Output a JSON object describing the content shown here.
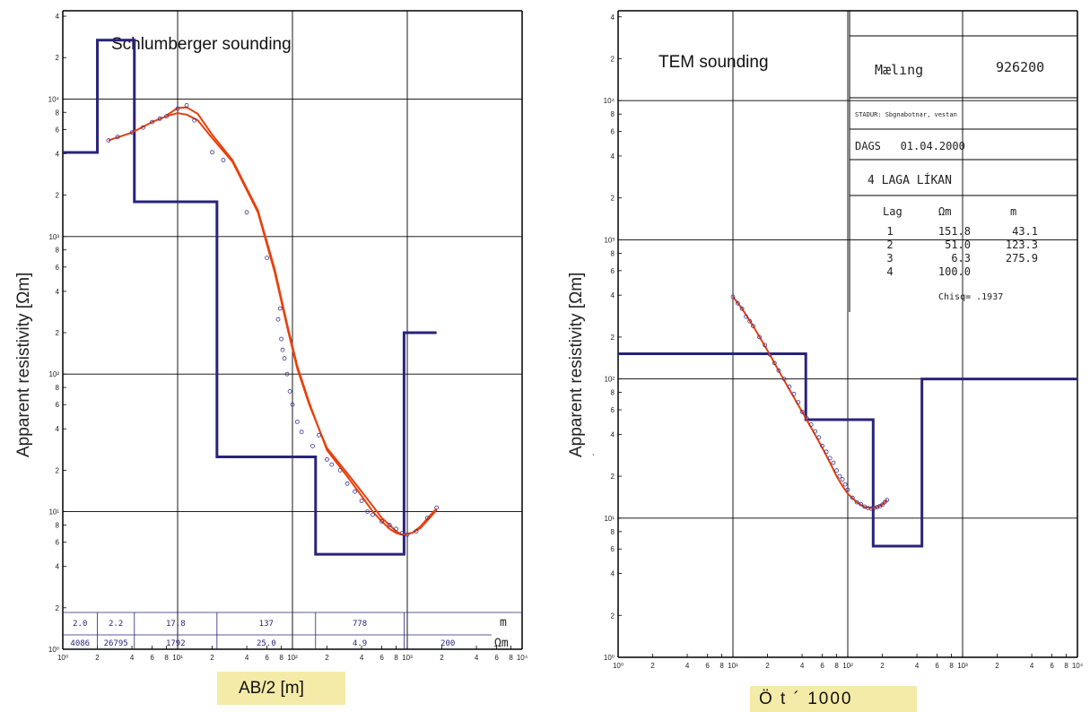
{
  "chart_data": [
    {
      "type": "line",
      "title": "Schlumberger sounding",
      "xlabel": "AB/2 [m]",
      "ylabel": "Apparent resistivity [Ωm]",
      "xscale": "log",
      "yscale": "log",
      "xlim": [
        1,
        10000
      ],
      "ylim": [
        1,
        100000
      ],
      "grid": true,
      "x_ticks": [
        {
          "v": 1,
          "t": "10⁰"
        },
        {
          "v": 2,
          "t": "2"
        },
        {
          "v": 4,
          "t": "4"
        },
        {
          "v": 6,
          "t": "6"
        },
        {
          "v": 8,
          "t": "8"
        },
        {
          "v": 10,
          "t": "10¹"
        },
        {
          "v": 20,
          "t": "2"
        },
        {
          "v": 40,
          "t": "4"
        },
        {
          "v": 60,
          "t": "6"
        },
        {
          "v": 80,
          "t": "8"
        },
        {
          "v": 100,
          "t": "10²"
        },
        {
          "v": 200,
          "t": "2"
        },
        {
          "v": 400,
          "t": "4"
        },
        {
          "v": 600,
          "t": "6"
        },
        {
          "v": 800,
          "t": "8"
        },
        {
          "v": 1000,
          "t": "10³"
        },
        {
          "v": 2000,
          "t": "2"
        },
        {
          "v": 4000,
          "t": "4"
        },
        {
          "v": 6000,
          "t": "6"
        },
        {
          "v": 8000,
          "t": "8"
        },
        {
          "v": 10000,
          "t": "10⁴"
        }
      ],
      "y_ticks": [
        {
          "v": 1,
          "t": "10⁰"
        },
        {
          "v": 2,
          "t": "2"
        },
        {
          "v": 4,
          "t": "4"
        },
        {
          "v": 6,
          "t": "6"
        },
        {
          "v": 8,
          "t": "8"
        },
        {
          "v": 10,
          "t": "10¹"
        },
        {
          "v": 20,
          "t": "2"
        },
        {
          "v": 40,
          "t": "4"
        },
        {
          "v": 60,
          "t": "6"
        },
        {
          "v": 80,
          "t": "8"
        },
        {
          "v": 100,
          "t": "10²"
        },
        {
          "v": 200,
          "t": "2"
        },
        {
          "v": 400,
          "t": "4"
        },
        {
          "v": 600,
          "t": "6"
        },
        {
          "v": 800,
          "t": "8"
        },
        {
          "v": 1000,
          "t": "10³"
        },
        {
          "v": 2000,
          "t": "2"
        },
        {
          "v": 4000,
          "t": "4"
        },
        {
          "v": 6000,
          "t": "6"
        },
        {
          "v": 8000,
          "t": "8"
        },
        {
          "v": 10000,
          "t": "10⁴"
        },
        {
          "v": 20000,
          "t": "2"
        },
        {
          "v": 40000,
          "t": "4"
        },
        {
          "v": 60000,
          "t": "6"
        },
        {
          "v": 80000,
          "t": "8"
        },
        {
          "v": 100000,
          "t": "10⁵"
        }
      ],
      "model": {
        "boundaries": [
          2.0,
          4.2,
          22.0,
          159.0,
          937.0
        ],
        "resistivities": [
          4086,
          26795,
          1792,
          25.0,
          4.9,
          200
        ],
        "thickness_labels": [
          "2.0",
          "2.2",
          "17.8",
          "137",
          "778"
        ],
        "resistivity_labels": [
          "4086",
          "26795",
          "1792",
          "25.0",
          "4.9",
          "200"
        ],
        "unit_thickness": "m",
        "unit_resistivity": "Ωm"
      },
      "series": [
        {
          "role": "fit",
          "x": [
            2.5,
            4,
            6,
            8,
            10,
            12,
            15,
            20,
            30,
            50,
            70,
            90,
            110,
            140,
            170,
            200,
            250,
            300,
            400,
            500,
            600,
            700,
            800,
            900,
            1100,
            1300,
            1600,
            1800
          ],
          "y": [
            5000,
            5700,
            6800,
            7500,
            7900,
            7700,
            7000,
            5200,
            3500,
            1500,
            550,
            220,
            110,
            60,
            40,
            28,
            22,
            18,
            13,
            10,
            8.5,
            7.5,
            7,
            6.8,
            7,
            7.8,
            9.5,
            10.5
          ]
        },
        {
          "role": "fit",
          "x": [
            8,
            10,
            12,
            15,
            20,
            30,
            50,
            70,
            90,
            110,
            140,
            170,
            200,
            250,
            300,
            400,
            500,
            600,
            700,
            800,
            900,
            1100,
            1300,
            1600,
            1800
          ],
          "y": [
            7600,
            8600,
            8700,
            7800,
            5500,
            3600,
            1550,
            580,
            230,
            115,
            62,
            40,
            29,
            23,
            19,
            14,
            11,
            9,
            8,
            7.2,
            6.8,
            7,
            7.6,
            9.2,
            10.3
          ]
        },
        {
          "role": "observed",
          "x": [
            2.5,
            3,
            4,
            5,
            6,
            7,
            8,
            10,
            12,
            14,
            20,
            25,
            40,
            60,
            75,
            78,
            80,
            82,
            85,
            90,
            95,
            100,
            110,
            120,
            150,
            170,
            200,
            220,
            260,
            300,
            350,
            400,
            450,
            500,
            600,
            700,
            800,
            900,
            1000,
            1200,
            1500,
            1800
          ],
          "y": [
            5000,
            5300,
            5700,
            6200,
            6800,
            7200,
            7500,
            8500,
            9000,
            7000,
            4100,
            3600,
            1500,
            700,
            250,
            300,
            180,
            150,
            130,
            100,
            75,
            60,
            45,
            38,
            30,
            36,
            24,
            22,
            20,
            16,
            14,
            12,
            10,
            9.5,
            8.5,
            8,
            7.5,
            7,
            6.8,
            7.2,
            9,
            10.7
          ]
        }
      ]
    },
    {
      "type": "line",
      "title": "TEM sounding",
      "xlabel": "Ö t ´ 1000",
      "ylabel": "Apparent resistivity [Ωm]",
      "xscale": "log",
      "yscale": "log",
      "xlim": [
        1,
        10000
      ],
      "ylim": [
        1,
        100000
      ],
      "grid": true,
      "x_ticks": [
        {
          "v": 1,
          "t": "10⁰"
        },
        {
          "v": 2,
          "t": "2"
        },
        {
          "v": 4,
          "t": "4"
        },
        {
          "v": 6,
          "t": "6"
        },
        {
          "v": 8,
          "t": "8"
        },
        {
          "v": 10,
          "t": "10¹"
        },
        {
          "v": 20,
          "t": "2"
        },
        {
          "v": 40,
          "t": "4"
        },
        {
          "v": 60,
          "t": "6"
        },
        {
          "v": 80,
          "t": "8"
        },
        {
          "v": 100,
          "t": "10²"
        },
        {
          "v": 200,
          "t": "2"
        },
        {
          "v": 400,
          "t": "4"
        },
        {
          "v": 600,
          "t": "6"
        },
        {
          "v": 800,
          "t": "8"
        },
        {
          "v": 1000,
          "t": "10³"
        },
        {
          "v": 2000,
          "t": "2"
        },
        {
          "v": 4000,
          "t": "4"
        },
        {
          "v": 6000,
          "t": "6"
        },
        {
          "v": 8000,
          "t": "8"
        },
        {
          "v": 10000,
          "t": "10⁴"
        }
      ],
      "y_ticks": [
        {
          "v": 1,
          "t": "10⁰"
        },
        {
          "v": 2,
          "t": "2"
        },
        {
          "v": 4,
          "t": "4"
        },
        {
          "v": 6,
          "t": "6"
        },
        {
          "v": 8,
          "t": "8"
        },
        {
          "v": 10,
          "t": "10¹"
        },
        {
          "v": 20,
          "t": "2"
        },
        {
          "v": 40,
          "t": "4"
        },
        {
          "v": 60,
          "t": "6"
        },
        {
          "v": 80,
          "t": "8"
        },
        {
          "v": 100,
          "t": "10²"
        },
        {
          "v": 200,
          "t": "2"
        },
        {
          "v": 400,
          "t": "4"
        },
        {
          "v": 600,
          "t": "6"
        },
        {
          "v": 800,
          "t": "8"
        },
        {
          "v": 1000,
          "t": "10³"
        },
        {
          "v": 2000,
          "t": "2"
        },
        {
          "v": 4000,
          "t": "4"
        },
        {
          "v": 6000,
          "t": "6"
        },
        {
          "v": 8000,
          "t": "8"
        },
        {
          "v": 10000,
          "t": "10⁴"
        },
        {
          "v": 20000,
          "t": "2"
        },
        {
          "v": 40000,
          "t": "4"
        },
        {
          "v": 60000,
          "t": "6"
        },
        {
          "v": 80000,
          "t": "8"
        },
        {
          "v": 100000,
          "t": "10⁵"
        }
      ],
      "model": {
        "boundaries": [
          43.1,
          166.4,
          442.3
        ],
        "resistivities": [
          151.8,
          51.0,
          6.3,
          100.0
        ]
      },
      "info": {
        "measure_label": "Mælıng",
        "measure_value": "926200",
        "place": "STADUR: Sbgnabotnar, vestan",
        "date": "DAGS   01.04.2000",
        "model_title": "4 LAGA LÍKAN",
        "table_headers": [
          "Lag",
          "Ωm",
          "m"
        ],
        "table_rows": [
          [
            "1",
            "151.8",
            "43.1"
          ],
          [
            "2",
            "51.0",
            "123.3"
          ],
          [
            "3",
            "6.3",
            "275.9"
          ],
          [
            "4",
            "100.0",
            ""
          ]
        ],
        "chisq": "Chisq= .1937"
      },
      "series": [
        {
          "role": "fit",
          "x": [
            10,
            12,
            15,
            20,
            25,
            30,
            40,
            50,
            60,
            70,
            80,
            90,
            100,
            120,
            140,
            160,
            180,
            200,
            220
          ],
          "y": [
            390,
            320,
            240,
            160,
            115,
            88,
            58,
            42,
            32,
            25,
            20,
            17,
            15,
            13,
            12,
            11.8,
            12,
            12.5,
            13.5
          ]
        },
        {
          "role": "observed",
          "x": [
            10,
            11,
            12,
            13,
            14,
            15,
            17,
            19,
            21,
            23,
            25,
            28,
            31,
            34,
            37,
            40,
            44,
            48,
            52,
            56,
            60,
            65,
            70,
            75,
            80,
            85,
            90,
            95,
            100,
            110,
            120,
            130,
            140,
            150,
            160,
            170,
            180,
            190,
            200,
            210,
            220
          ],
          "y": [
            390,
            350,
            320,
            280,
            260,
            240,
            200,
            175,
            150,
            130,
            115,
            100,
            88,
            78,
            68,
            58,
            52,
            47,
            42,
            38,
            33,
            30,
            27,
            25,
            22,
            20,
            19,
            17.5,
            16,
            14,
            13,
            12.6,
            12.1,
            11.8,
            11.7,
            11.8,
            12,
            12.2,
            12.5,
            13,
            13.5
          ]
        }
      ]
    }
  ]
}
